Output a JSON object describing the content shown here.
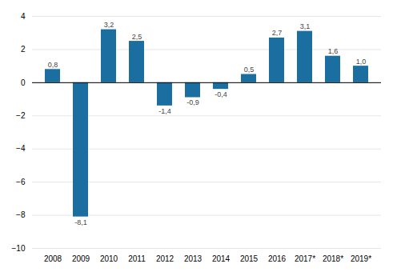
{
  "chart_data": {
    "type": "bar",
    "categories": [
      "2008",
      "2009",
      "2010",
      "2011",
      "2012",
      "2013",
      "2014",
      "2015",
      "2016",
      "2017*",
      "2018*",
      "2019*"
    ],
    "values": [
      0.8,
      -8.1,
      3.2,
      2.5,
      -1.4,
      -0.9,
      -0.4,
      0.5,
      2.7,
      3.1,
      1.6,
      1.0
    ],
    "value_labels": [
      "0,8",
      "-8,1",
      "3,2",
      "2,5",
      "-1,4",
      "-0,9",
      "-0,4",
      "0,5",
      "2,7",
      "3,1",
      "1,6",
      "1,0"
    ],
    "color": "#1a6fa0",
    "ylim": [
      -10,
      4
    ],
    "yticks": [
      -10,
      -8,
      -6,
      -4,
      -2,
      0,
      2,
      4
    ],
    "grid": true,
    "data_labels": true
  }
}
